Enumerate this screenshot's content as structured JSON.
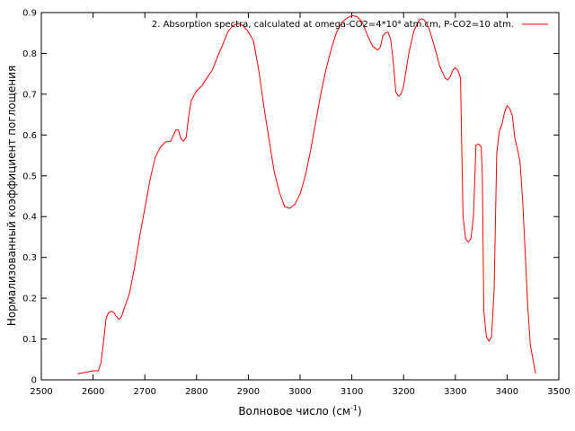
{
  "chart_data": {
    "type": "line",
    "title": "",
    "xlabel": "Волновое число (см",
    "xlabel_sup": "-1",
    "xlabel_end": ")",
    "ylabel": "Нормализованный коэффициент поглощения",
    "xlim": [
      2500,
      3500
    ],
    "ylim": [
      0,
      0.9
    ],
    "xticks": [
      2500,
      2600,
      2700,
      2800,
      2900,
      3000,
      3100,
      3200,
      3300,
      3400,
      3500
    ],
    "yticks": [
      0,
      0.1,
      0.2,
      0.3,
      0.4,
      0.5,
      0.6,
      0.7,
      0.8,
      0.9
    ],
    "grid": false,
    "legend_position": "top-right",
    "series": [
      {
        "name": "2. Absorption spectra, calculated at omega-CO2=4*10⁴ atm.cm, P-CO2=10 atm.",
        "color": "#ff0000",
        "x": [
          2570,
          2585,
          2600,
          2610,
          2615,
          2620,
          2625,
          2630,
          2635,
          2640,
          2645,
          2650,
          2655,
          2660,
          2670,
          2680,
          2690,
          2700,
          2710,
          2720,
          2730,
          2740,
          2750,
          2760,
          2765,
          2770,
          2775,
          2780,
          2785,
          2790,
          2800,
          2810,
          2820,
          2830,
          2840,
          2850,
          2860,
          2870,
          2880,
          2890,
          2900,
          2910,
          2920,
          2930,
          2940,
          2950,
          2960,
          2970,
          2980,
          2990,
          3000,
          3010,
          3020,
          3030,
          3040,
          3050,
          3060,
          3070,
          3080,
          3090,
          3100,
          3110,
          3120,
          3130,
          3140,
          3150,
          3155,
          3160,
          3165,
          3170,
          3175,
          3180,
          3185,
          3190,
          3195,
          3200,
          3205,
          3210,
          3220,
          3230,
          3235,
          3240,
          3245,
          3250,
          3260,
          3270,
          3280,
          3285,
          3290,
          3295,
          3300,
          3305,
          3310,
          3312,
          3315,
          3320,
          3325,
          3330,
          3335,
          3340,
          3345,
          3350,
          3352,
          3355,
          3360,
          3365,
          3370,
          3375,
          3380,
          3385,
          3390,
          3395,
          3400,
          3405,
          3410,
          3415,
          3420,
          3425,
          3430,
          3435,
          3440,
          3445,
          3450,
          3455
        ],
        "y": [
          0.015,
          0.018,
          0.022,
          0.022,
          0.04,
          0.09,
          0.15,
          0.165,
          0.168,
          0.165,
          0.155,
          0.148,
          0.155,
          0.175,
          0.21,
          0.275,
          0.35,
          0.42,
          0.49,
          0.545,
          0.57,
          0.583,
          0.585,
          0.613,
          0.612,
          0.59,
          0.585,
          0.595,
          0.65,
          0.685,
          0.708,
          0.72,
          0.74,
          0.758,
          0.79,
          0.82,
          0.852,
          0.868,
          0.873,
          0.868,
          0.853,
          0.83,
          0.76,
          0.67,
          0.59,
          0.51,
          0.46,
          0.425,
          0.42,
          0.43,
          0.455,
          0.5,
          0.56,
          0.63,
          0.7,
          0.76,
          0.81,
          0.85,
          0.875,
          0.886,
          0.893,
          0.89,
          0.877,
          0.845,
          0.818,
          0.808,
          0.815,
          0.843,
          0.85,
          0.852,
          0.835,
          0.78,
          0.705,
          0.695,
          0.7,
          0.72,
          0.76,
          0.8,
          0.855,
          0.882,
          0.885,
          0.882,
          0.873,
          0.858,
          0.815,
          0.768,
          0.74,
          0.735,
          0.742,
          0.758,
          0.765,
          0.758,
          0.74,
          0.6,
          0.4,
          0.345,
          0.338,
          0.345,
          0.4,
          0.575,
          0.578,
          0.572,
          0.505,
          0.17,
          0.105,
          0.095,
          0.105,
          0.22,
          0.555,
          0.61,
          0.625,
          0.655,
          0.672,
          0.665,
          0.648,
          0.593,
          0.565,
          0.535,
          0.44,
          0.31,
          0.18,
          0.085,
          0.05,
          0.016
        ]
      }
    ]
  }
}
